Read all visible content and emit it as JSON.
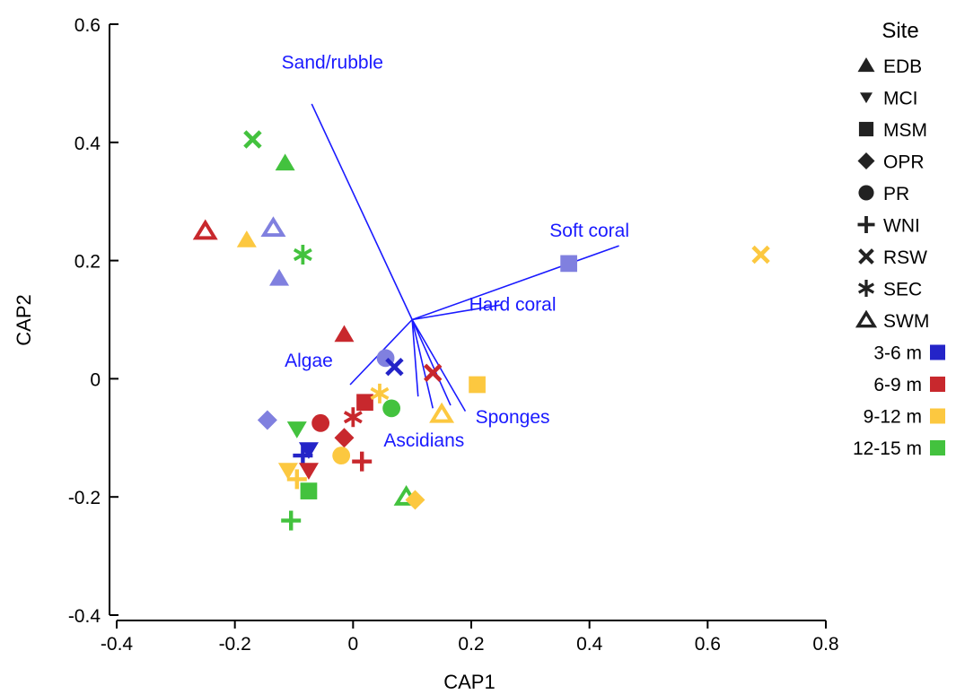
{
  "chart_data": {
    "type": "scatter",
    "xlabel": "CAP1",
    "ylabel": "CAP2",
    "xlim": [
      -0.4,
      0.8
    ],
    "ylim": [
      -0.4,
      0.6
    ],
    "xticks": [
      "-0.4",
      "-0.2",
      "0",
      "0.2",
      "0.4",
      "0.6",
      "0.8"
    ],
    "yticks": [
      "0.6",
      "0.4",
      "0.2",
      "0",
      "-0.2",
      "-0.4"
    ],
    "vectors_origin": [
      0.1,
      0.1
    ],
    "vectors": [
      {
        "label": "Sand/rubble",
        "end": [
          -0.07,
          0.465
        ],
        "label_at": [
          -0.035,
          0.525
        ]
      },
      {
        "label": "Soft coral",
        "end": [
          0.45,
          0.225
        ],
        "label_at": [
          0.4,
          0.24
        ]
      },
      {
        "label": "Hard coral",
        "end": [
          0.25,
          0.125
        ],
        "label_at": [
          0.27,
          0.115
        ]
      },
      {
        "label": "Algae",
        "end": [
          -0.005,
          -0.01
        ],
        "label_at": [
          -0.075,
          0.02
        ]
      },
      {
        "label": "Sponges",
        "end": [
          0.19,
          -0.055
        ],
        "label_at": [
          0.27,
          -0.075
        ]
      },
      {
        "label": "Ascidians",
        "end": [
          0.135,
          -0.05
        ],
        "label_at": [
          0.12,
          -0.115
        ]
      },
      {
        "label": "",
        "end": [
          0.165,
          -0.045
        ],
        "label_at": null
      },
      {
        "label": "",
        "end": [
          0.11,
          -0.03
        ],
        "label_at": null
      }
    ],
    "legend": {
      "title": "Site",
      "placement": "right",
      "sites": [
        {
          "name": "EDB",
          "marker": "triangle-up"
        },
        {
          "name": "MCI",
          "marker": "triangle-down"
        },
        {
          "name": "MSM",
          "marker": "square"
        },
        {
          "name": "OPR",
          "marker": "diamond"
        },
        {
          "name": "PR",
          "marker": "circle"
        },
        {
          "name": "WNI",
          "marker": "plus"
        },
        {
          "name": "RSW",
          "marker": "x"
        },
        {
          "name": "SEC",
          "marker": "asterisk"
        },
        {
          "name": "SWM",
          "marker": "triangle-open"
        }
      ],
      "depths": [
        {
          "name": "3-6 m",
          "color": "#2424c8"
        },
        {
          "name": "6-9 m",
          "color": "#c8282d"
        },
        {
          "name": "9-12 m",
          "color": "#fcc840"
        },
        {
          "name": "12-15 m",
          "color": "#43c23e"
        }
      ]
    },
    "points": [
      {
        "x": -0.17,
        "y": 0.405,
        "site": "RSW",
        "depth": "12-15 m"
      },
      {
        "x": -0.115,
        "y": 0.365,
        "site": "EDB",
        "depth": "12-15 m"
      },
      {
        "x": -0.25,
        "y": 0.25,
        "site": "SWM",
        "depth": "6-9 m"
      },
      {
        "x": -0.18,
        "y": 0.235,
        "site": "EDB",
        "depth": "9-12 m"
      },
      {
        "x": -0.135,
        "y": 0.255,
        "site": "SWM",
        "depth": "3-6 m",
        "light": true
      },
      {
        "x": -0.085,
        "y": 0.21,
        "site": "SEC",
        "depth": "12-15 m"
      },
      {
        "x": -0.125,
        "y": 0.17,
        "site": "EDB",
        "depth": "3-6 m",
        "light": true
      },
      {
        "x": 0.365,
        "y": 0.195,
        "site": "MSM",
        "depth": "3-6 m",
        "light": true
      },
      {
        "x": 0.69,
        "y": 0.21,
        "site": "RSW",
        "depth": "9-12 m"
      },
      {
        "x": -0.015,
        "y": 0.075,
        "site": "EDB",
        "depth": "6-9 m"
      },
      {
        "x": 0.055,
        "y": 0.035,
        "site": "PR",
        "depth": "3-6 m",
        "light": true
      },
      {
        "x": 0.07,
        "y": 0.02,
        "site": "RSW",
        "depth": "3-6 m"
      },
      {
        "x": 0.135,
        "y": 0.01,
        "site": "RSW",
        "depth": "6-9 m"
      },
      {
        "x": 0.21,
        "y": -0.01,
        "site": "MSM",
        "depth": "9-12 m"
      },
      {
        "x": 0.02,
        "y": -0.04,
        "site": "MSM",
        "depth": "6-9 m"
      },
      {
        "x": 0.045,
        "y": -0.025,
        "site": "SEC",
        "depth": "9-12 m"
      },
      {
        "x": 0.065,
        "y": -0.05,
        "site": "PR",
        "depth": "12-15 m"
      },
      {
        "x": 0.15,
        "y": -0.06,
        "site": "SWM",
        "depth": "9-12 m"
      },
      {
        "x": -0.145,
        "y": -0.07,
        "site": "OPR",
        "depth": "3-6 m",
        "light": true
      },
      {
        "x": -0.055,
        "y": -0.075,
        "site": "PR",
        "depth": "6-9 m"
      },
      {
        "x": 0.0,
        "y": -0.065,
        "site": "SEC",
        "depth": "6-9 m"
      },
      {
        "x": -0.095,
        "y": -0.085,
        "site": "MCI",
        "depth": "12-15 m"
      },
      {
        "x": -0.015,
        "y": -0.1,
        "site": "OPR",
        "depth": "6-9 m"
      },
      {
        "x": -0.075,
        "y": -0.12,
        "site": "MCI",
        "depth": "3-6 m"
      },
      {
        "x": -0.085,
        "y": -0.13,
        "site": "WNI",
        "depth": "3-6 m"
      },
      {
        "x": -0.02,
        "y": -0.13,
        "site": "PR",
        "depth": "9-12 m"
      },
      {
        "x": 0.015,
        "y": -0.14,
        "site": "WNI",
        "depth": "6-9 m"
      },
      {
        "x": -0.11,
        "y": -0.155,
        "site": "MCI",
        "depth": "9-12 m"
      },
      {
        "x": -0.075,
        "y": -0.155,
        "site": "MCI",
        "depth": "6-9 m"
      },
      {
        "x": -0.095,
        "y": -0.17,
        "site": "WNI",
        "depth": "9-12 m"
      },
      {
        "x": -0.075,
        "y": -0.19,
        "site": "MSM",
        "depth": "12-15 m"
      },
      {
        "x": 0.09,
        "y": -0.2,
        "site": "SWM",
        "depth": "12-15 m"
      },
      {
        "x": 0.105,
        "y": -0.205,
        "site": "OPR",
        "depth": "9-12 m"
      },
      {
        "x": -0.105,
        "y": -0.24,
        "site": "WNI",
        "depth": "12-15 m"
      }
    ]
  }
}
